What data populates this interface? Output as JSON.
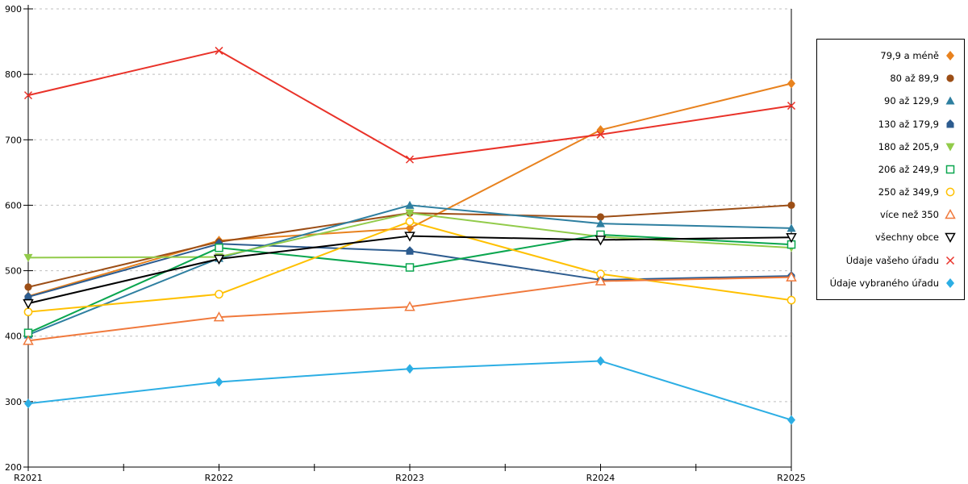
{
  "chart_data": {
    "type": "line",
    "title": "",
    "xlabel": "",
    "ylabel": "",
    "x_categories": [
      "R2021",
      "R2022",
      "R2023",
      "R2024",
      "R2025"
    ],
    "ylim": [
      200,
      900
    ],
    "ytick_step": 100,
    "y_tick_labels": [
      "200",
      "300",
      "400",
      "500",
      "600",
      "700",
      "800",
      "900"
    ],
    "grid": "horizontal dashed gridlines",
    "legend_position": "right",
    "axis_color": "#000000",
    "grid_color": "#bfbfbf",
    "series": [
      {
        "name": "79,9 a méně",
        "color": "#e8821e",
        "marker": "diamond",
        "style": "filled",
        "values": [
          461,
          546,
          565,
          715,
          786
        ]
      },
      {
        "name": "80 až 89,9",
        "color": "#9c4e16",
        "marker": "circle",
        "style": "filled",
        "values": [
          475,
          544,
          588,
          582,
          600
        ]
      },
      {
        "name": "90 až 129,9",
        "color": "#2e7fa0",
        "marker": "triangle-up",
        "style": "filled",
        "values": [
          402,
          519,
          600,
          572,
          565
        ]
      },
      {
        "name": "130 až 179,9",
        "color": "#2d5c8f",
        "marker": "pentagon",
        "style": "filled",
        "values": [
          460,
          541,
          530,
          486,
          492
        ]
      },
      {
        "name": "180 až 205,9",
        "color": "#92cb4a",
        "marker": "triangle-down",
        "style": "filled",
        "values": [
          520,
          521,
          588,
          552,
          535
        ]
      },
      {
        "name": "206 až 249,9",
        "color": "#0aa64f",
        "marker": "square",
        "style": "open",
        "values": [
          405,
          535,
          505,
          555,
          540
        ]
      },
      {
        "name": "250 až 349,9",
        "color": "#ffc000",
        "marker": "circle",
        "style": "open",
        "values": [
          437,
          464,
          575,
          495,
          455
        ]
      },
      {
        "name": "více než 350",
        "color": "#f0793c",
        "marker": "triangle-up",
        "style": "open",
        "values": [
          393,
          429,
          445,
          484,
          490
        ]
      },
      {
        "name": "všechny obce",
        "color": "#000000",
        "marker": "triangle-down",
        "style": "open",
        "values": [
          450,
          518,
          553,
          547,
          551
        ]
      },
      {
        "name": "Údaje vašeho úřadu",
        "color": "#e93229",
        "marker": "x",
        "style": "open",
        "values": [
          768,
          836,
          670,
          708,
          752
        ]
      },
      {
        "name": "Údaje vybraného úřadu",
        "color": "#2caee4",
        "marker": "diamond",
        "style": "filled",
        "values": [
          297,
          330,
          350,
          362,
          272
        ]
      }
    ]
  }
}
